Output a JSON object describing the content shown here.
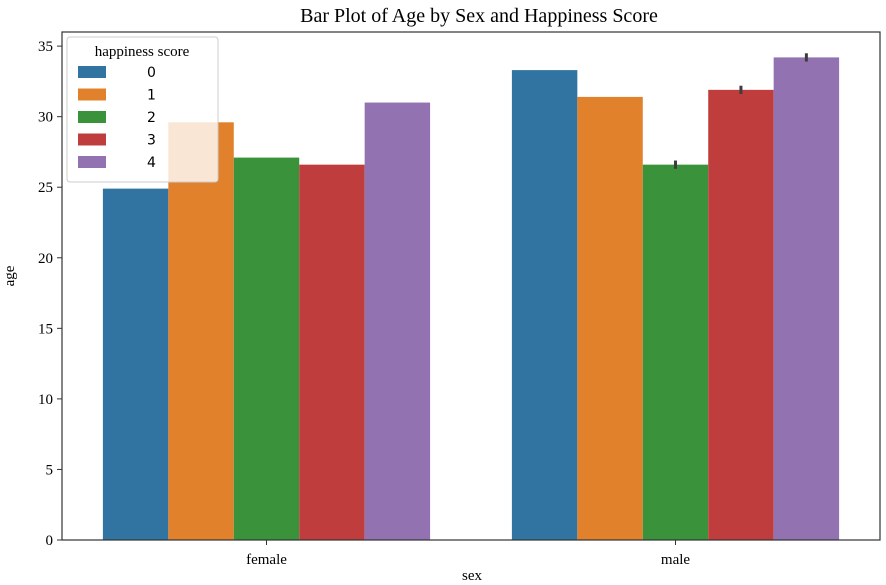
{
  "chart_data": {
    "type": "bar",
    "title": "Bar Plot of Age by Sex and Happiness Score",
    "xlabel": "sex",
    "ylabel": "age",
    "categories": [
      "female",
      "male"
    ],
    "ylim": [
      0,
      36
    ],
    "yticks": [
      0,
      5,
      10,
      15,
      20,
      25,
      30,
      35
    ],
    "grid": false,
    "legend": {
      "title": "happiness score",
      "placement": "top-left"
    },
    "series": [
      {
        "name": "0",
        "color": "#3274a1",
        "values": [
          24.9,
          33.3
        ],
        "error": [
          0,
          0
        ]
      },
      {
        "name": "1",
        "color": "#e1812c",
        "values": [
          29.6,
          31.4
        ],
        "error": [
          0,
          0
        ]
      },
      {
        "name": "2",
        "color": "#3a923a",
        "values": [
          27.1,
          26.6
        ],
        "error": [
          0,
          0.15
        ]
      },
      {
        "name": "3",
        "color": "#c03d3e",
        "values": [
          26.6,
          31.9
        ],
        "error": [
          0,
          0.15
        ]
      },
      {
        "name": "4",
        "color": "#9372b2",
        "values": [
          31.0,
          34.2
        ],
        "error": [
          0,
          0.15
        ]
      }
    ]
  }
}
